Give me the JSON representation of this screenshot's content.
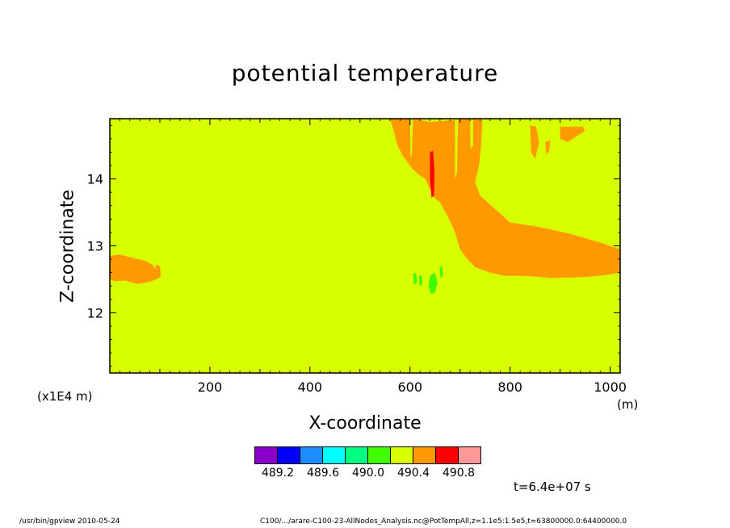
{
  "chart_data": {
    "type": "heatmap",
    "title": "potential temperature",
    "xlabel": "X-coordinate",
    "ylabel": "Z-coordinate",
    "x_unit": "(m)",
    "y_scale_note": "(x1E4 m)",
    "xlim": [
      0,
      1020
    ],
    "ylim": [
      11.1,
      14.9
    ],
    "x_ticks": [
      200,
      400,
      600,
      800,
      1000
    ],
    "y_ticks": [
      12,
      13,
      14
    ],
    "background_level": "490.2-490.4",
    "colorbar": {
      "colors": [
        "#8b00c8",
        "#0000ff",
        "#1e8cff",
        "#00ffff",
        "#00ff80",
        "#40ff00",
        "#d8ff00",
        "#ff9900",
        "#ff0000",
        "#ff9999"
      ],
      "labels": [
        "489.2",
        "489.6",
        "490.0",
        "490.4",
        "490.8"
      ]
    },
    "regions": [
      {
        "level": "490.4-490.6",
        "color": "#ff9900",
        "area": "left band",
        "x": [
          0,
          100
        ],
        "z": [
          12.45,
          12.85
        ]
      },
      {
        "level": "490.4-490.6",
        "color": "#ff9900",
        "area": "central plume",
        "x": [
          560,
          740
        ],
        "z": [
          12.9,
          14.9
        ]
      },
      {
        "level": "490.4-490.6",
        "color": "#ff9900",
        "area": "lower-right band",
        "x": [
          620,
          1020
        ],
        "z": [
          12.5,
          13.2
        ]
      },
      {
        "level": "490.4-490.6",
        "color": "#ff9900",
        "area": "upper-right patches",
        "x": [
          850,
          950
        ],
        "z": [
          14.2,
          14.8
        ]
      },
      {
        "level": "490.6-490.8",
        "color": "#ff0000",
        "area": "streak",
        "x": [
          640,
          648
        ],
        "z": [
          13.7,
          14.4
        ]
      },
      {
        "level": "490.0-490.2",
        "color": "#40ff00",
        "area": "low patch",
        "x": [
          600,
          680
        ],
        "z": [
          12.3,
          12.6
        ]
      }
    ]
  },
  "time_label": "t=6.4e+07 s",
  "footer": {
    "left": "/usr/bin/gpview   2010-05-24",
    "right": "C100/.../arare-C100-23-AllNodes_Analysis.nc@PotTempAll,z=1.1e5:1.5e5,t=63800000.0:64400000.0"
  }
}
